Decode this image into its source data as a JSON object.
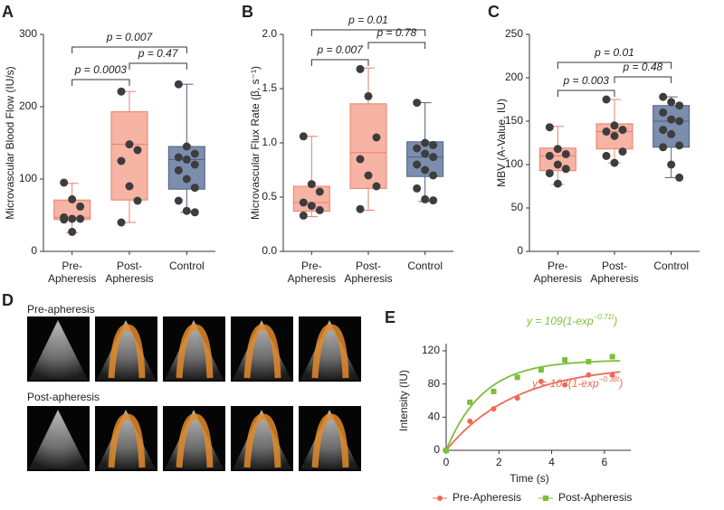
{
  "chart_data": [
    {
      "type": "box",
      "panel_label": "A",
      "ylabel": "Microvascular Blood Flow (IU/s)",
      "categories": [
        "Pre-Apheresis",
        "Post-Apheresis",
        "Control"
      ],
      "ylim": [
        0,
        300
      ],
      "yticks": [
        0,
        100,
        200,
        300
      ],
      "boxes": [
        {
          "min": 26,
          "q1": 44,
          "median": 47,
          "q3": 71,
          "max": 94,
          "color": "#f7b3a3",
          "edge_color": "#e8806c",
          "points": [
            95,
            72,
            62,
            47,
            45,
            45,
            44,
            27
          ]
        },
        {
          "min": 40,
          "q1": 71,
          "median": 148,
          "q3": 193,
          "max": 221,
          "color": "#f7b3a3",
          "edge_color": "#e8806c",
          "points": [
            221,
            148,
            140,
            125,
            90,
            70,
            40
          ]
        },
        {
          "min": 54,
          "q1": 86,
          "median": 127,
          "q3": 145,
          "max": 231,
          "color": "#7b8eae",
          "edge_color": "#4e6183",
          "points": [
            231,
            145,
            135,
            130,
            127,
            120,
            112,
            100,
            88,
            70,
            56,
            54
          ]
        }
      ],
      "annotations": [
        {
          "text": "p = 0.007",
          "between": [
            "Pre-Apheresis",
            "Control"
          ]
        },
        {
          "text": "p = 0.0003",
          "between": [
            "Pre-Apheresis",
            "Post-Apheresis"
          ]
        },
        {
          "text": "p = 0.47",
          "between": [
            "Post-Apheresis",
            "Control"
          ]
        }
      ]
    },
    {
      "type": "box",
      "panel_label": "B",
      "ylabel": "Microvascular Flux Rate (β, s⁻¹)",
      "categories": [
        "Pre-Apheresis",
        "Post-Apheresis",
        "Control"
      ],
      "ylim": [
        0,
        2
      ],
      "yticks": [
        {
          "value": 0,
          "label": "0.0"
        },
        {
          "value": 0.5,
          "label": "0.5"
        },
        {
          "value": 1,
          "label": "1.0"
        },
        {
          "value": 1.5,
          "label": "1.5"
        },
        {
          "value": 2,
          "label": "2.0"
        }
      ],
      "boxes": [
        {
          "min": 0.32,
          "q1": 0.37,
          "median": 0.45,
          "q3": 0.6,
          "max": 1.06,
          "color": "#f7b3a3",
          "edge_color": "#e8806c",
          "points": [
            1.06,
            0.62,
            0.55,
            0.45,
            0.42,
            0.38,
            0.33
          ]
        },
        {
          "min": 0.38,
          "q1": 0.58,
          "median": 0.91,
          "q3": 1.36,
          "max": 1.69,
          "color": "#f7b3a3",
          "edge_color": "#e8806c",
          "points": [
            1.68,
            1.43,
            1.05,
            0.85,
            0.7,
            0.6,
            0.39
          ]
        },
        {
          "min": 0.46,
          "q1": 0.69,
          "median": 0.87,
          "q3": 1.01,
          "max": 1.37,
          "color": "#7b8eae",
          "edge_color": "#4e6183",
          "points": [
            1.37,
            1.0,
            0.98,
            0.95,
            0.9,
            0.87,
            0.8,
            0.75,
            0.7,
            0.58,
            0.48,
            0.47
          ]
        }
      ],
      "annotations": [
        {
          "text": "p = 0.01",
          "between": [
            "Pre-Apheresis",
            "Control"
          ]
        },
        {
          "text": "p = 0.007",
          "between": [
            "Pre-Apheresis",
            "Post-Apheresis"
          ]
        },
        {
          "text": "p = 0.78",
          "between": [
            "Post-Apheresis",
            "Control"
          ]
        }
      ]
    },
    {
      "type": "box",
      "panel_label": "C",
      "ylabel": "MBV (A-Value, IU)",
      "categories": [
        "Pre-Apheresis",
        "Post-Apheresis",
        "Control"
      ],
      "ylim": [
        0,
        250
      ],
      "yticks": [
        0,
        50,
        100,
        150,
        200,
        250
      ],
      "boxes": [
        {
          "min": 77,
          "q1": 93,
          "median": 110,
          "q3": 119,
          "max": 144,
          "color": "#f7b3a3",
          "edge_color": "#e8806c",
          "points": [
            143,
            118,
            112,
            110,
            100,
            95,
            90,
            78
          ]
        },
        {
          "min": 102,
          "q1": 118,
          "median": 138,
          "q3": 147,
          "max": 175,
          "color": "#f7b3a3",
          "edge_color": "#e8806c",
          "points": [
            175,
            145,
            140,
            138,
            133,
            115,
            110,
            102
          ]
        },
        {
          "min": 85,
          "q1": 120,
          "median": 150,
          "q3": 168,
          "max": 178,
          "color": "#7b8eae",
          "edge_color": "#4e6183",
          "points": [
            178,
            172,
            168,
            160,
            152,
            150,
            140,
            135,
            122,
            120,
            100,
            85
          ]
        }
      ],
      "annotations": [
        {
          "text": "p = 0.01",
          "between": [
            "Pre-Apheresis",
            "Control"
          ]
        },
        {
          "text": "p = 0.003",
          "between": [
            "Pre-Apheresis",
            "Post-Apheresis"
          ]
        },
        {
          "text": "p = 0.48",
          "between": [
            "Post-Apheresis",
            "Control"
          ]
        }
      ]
    },
    {
      "type": "scatter",
      "panel_label": "E",
      "xlabel": "Time (s)",
      "ylabel": "Intensity (IU)",
      "xlim": [
        0,
        7
      ],
      "xticks": [
        0,
        2,
        4,
        6
      ],
      "ylim": [
        0,
        120
      ],
      "yticks": [
        0,
        40,
        80,
        120
      ],
      "series": [
        {
          "name": "Pre-Apheresis",
          "color": "#ee6a55",
          "marker": "circle",
          "x": [
            0,
            0.9,
            1.8,
            2.7,
            3.6,
            4.5,
            5.4,
            6.3
          ],
          "values": [
            0,
            35,
            50,
            63,
            83,
            79,
            91,
            91
          ],
          "fit": {
            "a": 103,
            "k": 0.38
          },
          "equation": {
            "base": "y = 103(1-exp",
            "sup": "−0.38t",
            "end": ")"
          }
        },
        {
          "name": "Post-Apheresis",
          "color": "#7dbf3a",
          "marker": "square",
          "x": [
            0,
            0.9,
            1.8,
            2.7,
            3.6,
            4.5,
            5.4,
            6.3
          ],
          "values": [
            0,
            58,
            71,
            88,
            97,
            109,
            107,
            113
          ],
          "fit": {
            "a": 109,
            "k": 0.71
          },
          "equation": {
            "base": "y = 109(1-exp",
            "sup": "−0.71t",
            "end": ")"
          }
        }
      ]
    }
  ],
  "images": {
    "panel_label": "D",
    "rows": [
      {
        "label": "Pre-apheresis"
      },
      {
        "label": "Post-apheresis"
      }
    ]
  }
}
